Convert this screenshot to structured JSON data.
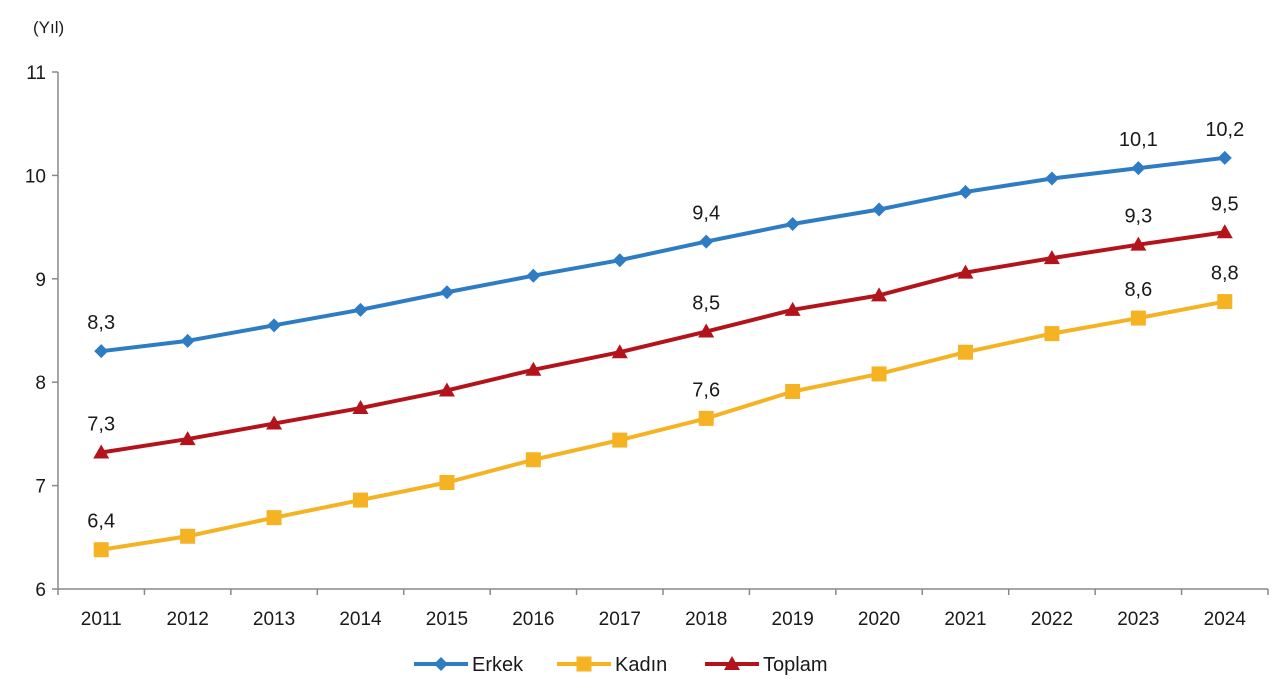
{
  "chart_data": {
    "type": "line",
    "title": "",
    "ylabel": "(Yıl)",
    "xlabel": "",
    "ylim": [
      6,
      11
    ],
    "yticks": [
      6,
      7,
      8,
      9,
      10,
      11
    ],
    "ytick_labels": [
      "6",
      "7",
      "8",
      "9",
      "10",
      "11"
    ],
    "grid": false,
    "legend_position": "bottom",
    "categories": [
      "2011",
      "2012",
      "2013",
      "2014",
      "2015",
      "2016",
      "2017",
      "2018",
      "2019",
      "2020",
      "2021",
      "2022",
      "2023",
      "2024"
    ],
    "series": [
      {
        "name": "Erkek",
        "color": "#2e7cc4",
        "marker": "diamond",
        "values": [
          8.3,
          8.4,
          8.55,
          8.7,
          8.87,
          9.03,
          9.18,
          9.36,
          9.53,
          9.67,
          9.84,
          9.97,
          10.07,
          10.17
        ],
        "data_labels": {
          "0": "8,3",
          "7": "9,4",
          "12": "10,1",
          "13": "10,2"
        }
      },
      {
        "name": "Kadın",
        "color": "#f5b324",
        "marker": "square",
        "values": [
          6.38,
          6.51,
          6.69,
          6.86,
          7.03,
          7.25,
          7.44,
          7.65,
          7.91,
          8.08,
          8.29,
          8.47,
          8.62,
          8.78
        ],
        "data_labels": {
          "0": "6,4",
          "7": "7,6",
          "12": "8,6",
          "13": "8,8"
        }
      },
      {
        "name": "Toplam",
        "color": "#b3141b",
        "marker": "triangle",
        "values": [
          7.32,
          7.45,
          7.6,
          7.75,
          7.92,
          8.12,
          8.29,
          8.49,
          8.7,
          8.84,
          9.06,
          9.2,
          9.33,
          9.45
        ],
        "data_labels": {
          "0": "7,3",
          "7": "8,5",
          "12": "9,3",
          "13": "9,5"
        }
      }
    ]
  }
}
